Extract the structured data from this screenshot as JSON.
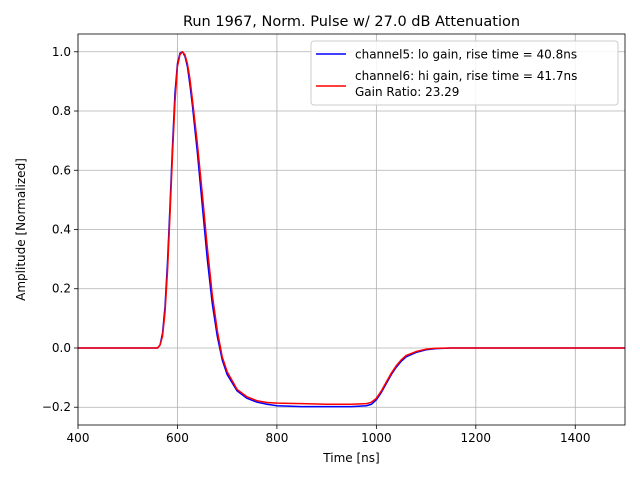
{
  "chart_data": {
    "type": "line",
    "title": "Run 1967, Norm. Pulse w/ 27.0 dB Attenuation",
    "xlabel": "Time [ns]",
    "ylabel": "Amplitude [Normalized]",
    "xlim": [
      400,
      1500
    ],
    "ylim": [
      -0.26,
      1.06
    ],
    "x_ticks": [
      400,
      600,
      800,
      1000,
      1200,
      1400
    ],
    "y_ticks": [
      -0.2,
      0.0,
      0.2,
      0.4,
      0.6,
      0.8,
      1.0
    ],
    "x_tick_labels": [
      "400",
      "600",
      "800",
      "1000",
      "1200",
      "1400"
    ],
    "y_tick_labels": [
      "−0.2",
      "0.0",
      "0.2",
      "0.4",
      "0.6",
      "0.8",
      "1.0"
    ],
    "grid": true,
    "legend_position": "top-right",
    "legend_extra": "Gain Ratio: 23.29",
    "series": [
      {
        "name": "channel5: lo gain, rise time = 40.8ns",
        "color": "#0000ff",
        "x": [
          400,
          450,
          500,
          550,
          560,
          565,
          570,
          575,
          580,
          585,
          590,
          595,
          600,
          605,
          610,
          615,
          620,
          625,
          630,
          640,
          650,
          660,
          670,
          680,
          690,
          700,
          720,
          740,
          760,
          780,
          800,
          850,
          900,
          950,
          980,
          990,
          1000,
          1010,
          1020,
          1030,
          1040,
          1050,
          1060,
          1080,
          1100,
          1120,
          1150,
          1200,
          1250,
          1300,
          1350,
          1400,
          1450,
          1500
        ],
        "y": [
          0.0,
          0.0,
          0.0,
          0.0,
          0.0,
          0.01,
          0.05,
          0.14,
          0.29,
          0.48,
          0.68,
          0.86,
          0.96,
          0.995,
          1.0,
          0.985,
          0.95,
          0.89,
          0.82,
          0.66,
          0.48,
          0.3,
          0.15,
          0.04,
          -0.04,
          -0.09,
          -0.145,
          -0.17,
          -0.183,
          -0.19,
          -0.195,
          -0.198,
          -0.198,
          -0.198,
          -0.195,
          -0.19,
          -0.175,
          -0.15,
          -0.12,
          -0.09,
          -0.065,
          -0.045,
          -0.03,
          -0.015,
          -0.006,
          -0.002,
          0.0,
          0.0,
          0.0,
          0.0,
          0.0,
          0.0,
          0.0,
          0.0
        ]
      },
      {
        "name": "channel6: hi gain, rise time = 41.7ns",
        "color": "#ff0000",
        "x": [
          400,
          450,
          500,
          550,
          560,
          565,
          570,
          575,
          580,
          585,
          590,
          595,
          600,
          605,
          610,
          615,
          620,
          625,
          630,
          640,
          650,
          660,
          670,
          680,
          690,
          700,
          720,
          740,
          760,
          780,
          800,
          850,
          900,
          950,
          980,
          990,
          1000,
          1010,
          1020,
          1030,
          1040,
          1050,
          1060,
          1080,
          1100,
          1120,
          1150,
          1200,
          1250,
          1300,
          1350,
          1400,
          1450,
          1500
        ],
        "y": [
          0.0,
          0.0,
          0.0,
          0.0,
          0.0,
          0.01,
          0.04,
          0.12,
          0.26,
          0.45,
          0.65,
          0.83,
          0.95,
          0.99,
          1.0,
          0.99,
          0.96,
          0.91,
          0.84,
          0.69,
          0.52,
          0.34,
          0.18,
          0.06,
          -0.03,
          -0.08,
          -0.14,
          -0.165,
          -0.178,
          -0.184,
          -0.186,
          -0.188,
          -0.19,
          -0.19,
          -0.188,
          -0.183,
          -0.17,
          -0.145,
          -0.115,
          -0.085,
          -0.06,
          -0.04,
          -0.025,
          -0.012,
          -0.004,
          -0.001,
          0.0,
          0.0,
          0.0,
          0.0,
          0.0,
          0.0,
          0.0,
          0.0
        ]
      }
    ]
  }
}
